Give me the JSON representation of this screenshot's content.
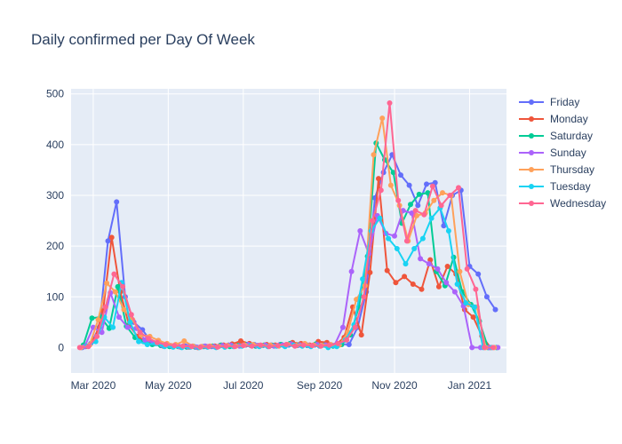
{
  "chart_data": {
    "type": "line",
    "title": "Daily confirmed per Day Of Week",
    "xlabel": "",
    "ylabel": "",
    "x_ticks": [
      "Mar 2020",
      "May 2020",
      "Jul 2020",
      "Sep 2020",
      "Nov 2020",
      "Jan 2021"
    ],
    "y_ticks": [
      "0",
      "100",
      "200",
      "300",
      "400",
      "500"
    ],
    "ylim": [
      -50,
      510
    ],
    "xlim": [
      "2020-02-12",
      "2021-01-31"
    ],
    "grid": true,
    "legend_position": "right",
    "series": [
      {
        "name": "Friday",
        "color": "#636efa",
        "x": [
          "2020-02-21",
          "2020-02-28",
          "2020-03-06",
          "2020-03-13",
          "2020-03-20",
          "2020-03-27",
          "2020-04-03",
          "2020-04-10",
          "2020-04-17",
          "2020-04-24",
          "2020-05-01",
          "2020-05-08",
          "2020-05-15",
          "2020-05-22",
          "2020-05-29",
          "2020-06-05",
          "2020-06-12",
          "2020-06-19",
          "2020-06-26",
          "2020-07-03",
          "2020-07-10",
          "2020-07-17",
          "2020-07-24",
          "2020-07-31",
          "2020-08-07",
          "2020-08-14",
          "2020-08-21",
          "2020-08-28",
          "2020-09-04",
          "2020-09-11",
          "2020-09-18",
          "2020-09-25",
          "2020-10-02",
          "2020-10-09",
          "2020-10-16",
          "2020-10-23",
          "2020-10-30",
          "2020-11-06",
          "2020-11-13",
          "2020-11-20",
          "2020-11-27",
          "2020-12-04",
          "2020-12-11",
          "2020-12-18",
          "2020-12-25",
          "2021-01-01",
          "2021-01-08",
          "2021-01-15",
          "2021-01-22"
        ],
        "y": [
          0,
          8,
          40,
          210,
          287,
          100,
          50,
          35,
          12,
          10,
          5,
          4,
          3,
          2,
          2,
          2,
          4,
          5,
          4,
          5,
          6,
          4,
          5,
          6,
          5,
          4,
          6,
          5,
          6,
          5,
          7,
          6,
          40,
          110,
          295,
          345,
          380,
          340,
          320,
          280,
          322,
          325,
          240,
          300,
          310,
          160,
          145,
          100,
          75
        ]
      },
      {
        "name": "Monday",
        "color": "#ef553b",
        "x": [
          "2020-02-24",
          "2020-03-02",
          "2020-03-09",
          "2020-03-16",
          "2020-03-23",
          "2020-03-30",
          "2020-04-06",
          "2020-04-13",
          "2020-04-20",
          "2020-04-27",
          "2020-05-04",
          "2020-05-11",
          "2020-05-18",
          "2020-05-25",
          "2020-06-01",
          "2020-06-08",
          "2020-06-15",
          "2020-06-22",
          "2020-06-29",
          "2020-07-06",
          "2020-07-13",
          "2020-07-20",
          "2020-07-27",
          "2020-08-03",
          "2020-08-10",
          "2020-08-17",
          "2020-08-24",
          "2020-08-31",
          "2020-09-07",
          "2020-09-14",
          "2020-09-21",
          "2020-09-28",
          "2020-10-05",
          "2020-10-12",
          "2020-10-19",
          "2020-10-26",
          "2020-11-02",
          "2020-11-09",
          "2020-11-16",
          "2020-11-23",
          "2020-11-30",
          "2020-12-07",
          "2020-12-14",
          "2020-12-21",
          "2020-12-28",
          "2021-01-04",
          "2021-01-11",
          "2021-01-18"
        ],
        "y": [
          2,
          15,
          72,
          217,
          110,
          45,
          22,
          12,
          8,
          3,
          2,
          1,
          1,
          0,
          2,
          3,
          5,
          7,
          13,
          8,
          4,
          6,
          5,
          4,
          10,
          8,
          5,
          12,
          10,
          5,
          20,
          80,
          25,
          148,
          333,
          152,
          128,
          140,
          125,
          115,
          173,
          120,
          160,
          145,
          75,
          60,
          23,
          0
        ]
      },
      {
        "name": "Saturday",
        "color": "#00cc96",
        "x": [
          "2020-02-22",
          "2020-02-29",
          "2020-03-07",
          "2020-03-14",
          "2020-03-21",
          "2020-03-28",
          "2020-04-04",
          "2020-04-11",
          "2020-04-18",
          "2020-04-25",
          "2020-05-02",
          "2020-05-09",
          "2020-05-16",
          "2020-05-23",
          "2020-05-30",
          "2020-06-06",
          "2020-06-13",
          "2020-06-20",
          "2020-06-27",
          "2020-07-04",
          "2020-07-11",
          "2020-07-18",
          "2020-07-25",
          "2020-08-01",
          "2020-08-08",
          "2020-08-15",
          "2020-08-22",
          "2020-08-29",
          "2020-09-05",
          "2020-09-12",
          "2020-09-19",
          "2020-09-26",
          "2020-10-03",
          "2020-10-10",
          "2020-10-17",
          "2020-10-24",
          "2020-10-31",
          "2020-11-07",
          "2020-11-14",
          "2020-11-21",
          "2020-11-28",
          "2020-12-05",
          "2020-12-12",
          "2020-12-19",
          "2020-12-26",
          "2021-01-02",
          "2021-01-09",
          "2021-01-16",
          "2021-01-23"
        ],
        "y": [
          5,
          58,
          60,
          38,
          120,
          42,
          20,
          12,
          6,
          4,
          2,
          2,
          1,
          1,
          2,
          3,
          5,
          2,
          4,
          6,
          3,
          5,
          4,
          6,
          8,
          5,
          4,
          7,
          5,
          3,
          6,
          25,
          80,
          180,
          403,
          370,
          345,
          245,
          282,
          302,
          305,
          150,
          122,
          178,
          110,
          85,
          52,
          0,
          0
        ]
      },
      {
        "name": "Sunday",
        "color": "#ab63fa",
        "x": [
          "2020-02-23",
          "2020-03-01",
          "2020-03-08",
          "2020-03-15",
          "2020-03-22",
          "2020-03-29",
          "2020-04-05",
          "2020-04-12",
          "2020-04-19",
          "2020-04-26",
          "2020-05-03",
          "2020-05-10",
          "2020-05-17",
          "2020-05-24",
          "2020-05-31",
          "2020-06-07",
          "2020-06-14",
          "2020-06-21",
          "2020-06-28",
          "2020-07-05",
          "2020-07-12",
          "2020-07-19",
          "2020-07-26",
          "2020-08-02",
          "2020-08-09",
          "2020-08-16",
          "2020-08-23",
          "2020-08-30",
          "2020-09-06",
          "2020-09-13",
          "2020-09-20",
          "2020-09-27",
          "2020-10-04",
          "2020-10-11",
          "2020-10-18",
          "2020-10-25",
          "2020-11-01",
          "2020-11-08",
          "2020-11-15",
          "2020-11-22",
          "2020-11-29",
          "2020-12-06",
          "2020-12-13",
          "2020-12-20",
          "2020-12-27",
          "2021-01-03",
          "2021-01-10",
          "2021-01-17",
          "2021-01-24"
        ],
        "y": [
          2,
          40,
          30,
          108,
          60,
          40,
          38,
          15,
          10,
          5,
          4,
          2,
          2,
          1,
          3,
          2,
          4,
          5,
          3,
          6,
          4,
          5,
          3,
          5,
          7,
          5,
          4,
          6,
          5,
          4,
          40,
          150,
          230,
          185,
          260,
          225,
          220,
          270,
          265,
          175,
          165,
          155,
          128,
          110,
          82,
          0,
          0,
          0,
          0
        ]
      },
      {
        "name": "Thursday",
        "color": "#ffa15a",
        "x": [
          "2020-02-20",
          "2020-02-27",
          "2020-03-05",
          "2020-03-12",
          "2020-03-19",
          "2020-03-26",
          "2020-04-02",
          "2020-04-09",
          "2020-04-16",
          "2020-04-23",
          "2020-04-30",
          "2020-05-07",
          "2020-05-14",
          "2020-05-21",
          "2020-05-28",
          "2020-06-04",
          "2020-06-11",
          "2020-06-18",
          "2020-06-25",
          "2020-07-02",
          "2020-07-09",
          "2020-07-16",
          "2020-07-23",
          "2020-07-30",
          "2020-08-06",
          "2020-08-13",
          "2020-08-20",
          "2020-08-27",
          "2020-09-03",
          "2020-09-10",
          "2020-09-17",
          "2020-09-24",
          "2020-10-01",
          "2020-10-08",
          "2020-10-15",
          "2020-10-22",
          "2020-10-29",
          "2020-11-05",
          "2020-11-12",
          "2020-11-19",
          "2020-11-26",
          "2020-12-03",
          "2020-12-10",
          "2020-12-17",
          "2020-12-24",
          "2020-12-31",
          "2021-01-07",
          "2021-01-14",
          "2021-01-21"
        ],
        "y": [
          0,
          5,
          55,
          127,
          110,
          75,
          55,
          25,
          22,
          14,
          8,
          6,
          13,
          3,
          2,
          3,
          2,
          4,
          3,
          5,
          6,
          4,
          5,
          3,
          6,
          4,
          8,
          5,
          4,
          6,
          5,
          30,
          95,
          122,
          380,
          452,
          320,
          280,
          210,
          260,
          265,
          290,
          305,
          300,
          150,
          85,
          80,
          0,
          0
        ]
      },
      {
        "name": "Tuesday",
        "color": "#19d3f3",
        "x": [
          "2020-02-25",
          "2020-03-03",
          "2020-03-10",
          "2020-03-17",
          "2020-03-24",
          "2020-03-31",
          "2020-04-07",
          "2020-04-14",
          "2020-04-21",
          "2020-04-28",
          "2020-05-05",
          "2020-05-12",
          "2020-05-19",
          "2020-05-26",
          "2020-06-02",
          "2020-06-09",
          "2020-06-16",
          "2020-06-23",
          "2020-06-30",
          "2020-07-07",
          "2020-07-14",
          "2020-07-21",
          "2020-07-28",
          "2020-08-04",
          "2020-08-11",
          "2020-08-18",
          "2020-08-25",
          "2020-09-01",
          "2020-09-08",
          "2020-09-15",
          "2020-09-22",
          "2020-09-29",
          "2020-10-06",
          "2020-10-13",
          "2020-10-20",
          "2020-10-27",
          "2020-11-03",
          "2020-11-10",
          "2020-11-17",
          "2020-11-24",
          "2020-12-01",
          "2020-12-08",
          "2020-12-15",
          "2020-12-22",
          "2020-12-29",
          "2021-01-05",
          "2021-01-12",
          "2021-01-19"
        ],
        "y": [
          3,
          12,
          60,
          40,
          128,
          50,
          12,
          6,
          8,
          2,
          1,
          0,
          1,
          0,
          1,
          0,
          1,
          2,
          3,
          4,
          2,
          2,
          3,
          2,
          5,
          3,
          2,
          3,
          0,
          2,
          15,
          45,
          135,
          230,
          255,
          215,
          195,
          165,
          195,
          215,
          255,
          275,
          230,
          125,
          88,
          80,
          0,
          0
        ]
      },
      {
        "name": "Wednesday",
        "color": "#ff6692",
        "x": [
          "2020-02-19",
          "2020-02-26",
          "2020-03-04",
          "2020-03-11",
          "2020-03-18",
          "2020-03-25",
          "2020-04-01",
          "2020-04-08",
          "2020-04-15",
          "2020-04-22",
          "2020-04-29",
          "2020-05-06",
          "2020-05-13",
          "2020-05-20",
          "2020-05-27",
          "2020-06-03",
          "2020-06-10",
          "2020-06-17",
          "2020-06-24",
          "2020-07-01",
          "2020-07-08",
          "2020-07-15",
          "2020-07-22",
          "2020-07-29",
          "2020-08-05",
          "2020-08-12",
          "2020-08-19",
          "2020-08-26",
          "2020-09-02",
          "2020-09-09",
          "2020-09-16",
          "2020-09-23",
          "2020-09-30",
          "2020-10-07",
          "2020-10-14",
          "2020-10-21",
          "2020-10-28",
          "2020-11-04",
          "2020-11-11",
          "2020-11-18",
          "2020-11-25",
          "2020-12-02",
          "2020-12-09",
          "2020-12-16",
          "2020-12-23",
          "2020-12-30",
          "2021-01-06",
          "2021-01-13",
          "2021-01-20"
        ],
        "y": [
          0,
          2,
          22,
          80,
          145,
          120,
          65,
          30,
          18,
          10,
          6,
          4,
          3,
          2,
          1,
          2,
          1,
          3,
          2,
          4,
          3,
          5,
          2,
          4,
          6,
          3,
          5,
          4,
          3,
          5,
          8,
          15,
          40,
          100,
          250,
          310,
          482,
          290,
          210,
          270,
          262,
          318,
          280,
          300,
          315,
          155,
          115,
          0,
          0
        ]
      }
    ]
  }
}
